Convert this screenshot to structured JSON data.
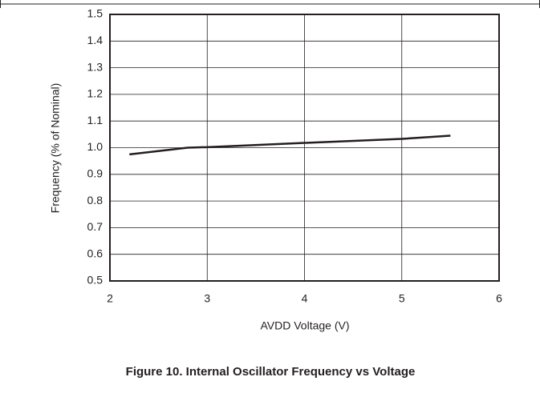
{
  "chart_data": {
    "type": "line",
    "caption": "Figure 10. Internal Oscillator Frequency vs Voltage",
    "xlabel": "AVDD Voltage (V)",
    "ylabel": "Frequency (% of Nominal)",
    "x": [
      2.2,
      2.8,
      3,
      4,
      5,
      5.5
    ],
    "values": [
      0.975,
      1.0,
      1.002,
      1.018,
      1.033,
      1.045
    ],
    "color": "#231f20",
    "xlim": [
      2,
      6
    ],
    "xticks": [
      2,
      3,
      4,
      5,
      6
    ],
    "ylim": [
      0.5,
      1.5
    ],
    "yticks": [
      0.5,
      0.6,
      0.7,
      0.8,
      0.9,
      {
        "value": 1,
        "label": "1.0"
      },
      1.1,
      1.2,
      1.3,
      1.4,
      1.5
    ],
    "grid": true
  }
}
